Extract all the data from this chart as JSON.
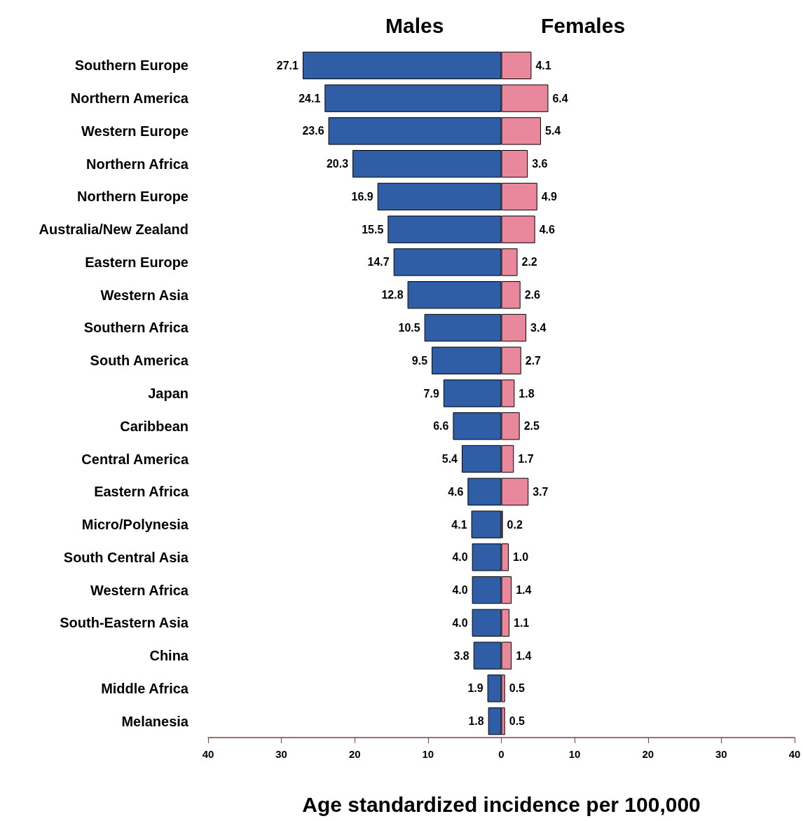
{
  "chart_data": {
    "type": "bar",
    "orientation": "horizontal",
    "xlabel": "Age standardized incidence per 100,000",
    "categories": [
      "Southern Europe",
      "Northern America",
      "Western Europe",
      "Northern Africa",
      "Northern Europe",
      "Australia/New Zealand",
      "Eastern Europe",
      "Western Asia",
      "Southern Africa",
      "South America",
      "Japan",
      "Caribbean",
      "Central America",
      "Eastern Africa",
      "Micro/Polynesia",
      "South Central Asia",
      "Western Africa",
      "South-Eastern Asia",
      "China",
      "Middle Africa",
      "Melanesia"
    ],
    "series": [
      {
        "name": "Males",
        "color": "#2f5ea6",
        "base": [
          -27.1,
          -24.1,
          -23.6,
          -20.3,
          -16.9,
          -15.5,
          -14.7,
          -12.8,
          -10.5,
          -9.5,
          -7.9,
          -6.6,
          -5.4,
          -4.6,
          -4.1,
          -4.0,
          -4.0,
          -4.0,
          -3.8,
          -1.9,
          -1.8
        ],
        "values": [
          27.1,
          24.1,
          23.6,
          20.3,
          16.9,
          15.5,
          14.7,
          12.8,
          10.5,
          9.5,
          7.9,
          6.6,
          5.4,
          4.6,
          4.1,
          4.0,
          4.0,
          4.0,
          3.8,
          1.9,
          1.8
        ],
        "value_labels": [
          "27.1",
          "24.1",
          "23.6",
          "20.3",
          "16.9",
          "15.5",
          "14.7",
          "12.8",
          "10.5",
          "9.5",
          "7.9",
          "6.6",
          "5.4",
          "4.6",
          "4.1",
          "4.0",
          "4.0",
          "4.0",
          "3.8",
          "1.9",
          "1.8"
        ]
      },
      {
        "name": "Females",
        "color": "#e9889c",
        "values": [
          4.1,
          6.4,
          5.4,
          3.6,
          4.9,
          4.6,
          2.2,
          2.6,
          3.4,
          2.7,
          1.8,
          2.5,
          1.7,
          3.7,
          0.2,
          1.0,
          1.4,
          1.1,
          1.4,
          0.5,
          0.5
        ],
        "value_labels": [
          "4.1",
          "6.4",
          "5.4",
          "3.6",
          "4.9",
          "4.6",
          "2.2",
          "2.6",
          "3.4",
          "2.7",
          "1.8",
          "2.5",
          "1.7",
          "3.7",
          "0.2",
          "1.0",
          "1.4",
          "1.1",
          "1.4",
          "0.5",
          "0.5"
        ]
      }
    ],
    "xlim": [
      -40,
      40
    ],
    "xticks": [
      {
        "value": -40,
        "label": "40"
      },
      {
        "value": -30,
        "label": "30"
      },
      {
        "value": -20,
        "label": "20"
      },
      {
        "value": -10,
        "label": "10"
      },
      0,
      10,
      20,
      30,
      40
    ],
    "legend": "top",
    "grid": false
  }
}
